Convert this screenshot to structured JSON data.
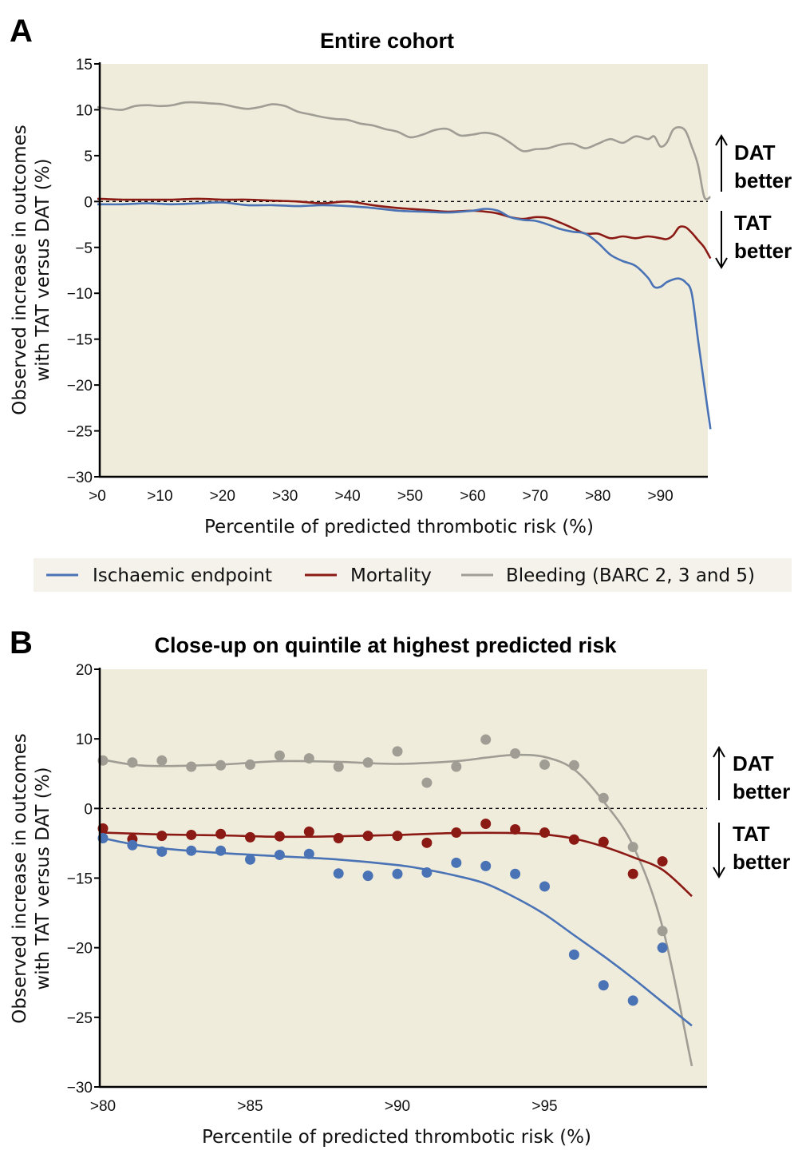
{
  "figure": {
    "legend": {
      "items": [
        {
          "label": "Ischaemic endpoint",
          "color": "#4a73b5"
        },
        {
          "label": "Mortality",
          "color": "#8b1a14"
        },
        {
          "label": "Bleeding (BARC 2, 3 and 5)",
          "color": "#a09d95"
        }
      ]
    },
    "plot_background": "#efecdc",
    "annotations": {
      "up": {
        "line1": "DAT",
        "line2": "better"
      },
      "down": {
        "line1": "TAT",
        "line2": "better"
      }
    }
  },
  "chart_data": [
    {
      "panel": "A",
      "type": "line",
      "title": "Entire cohort",
      "xlabel": "Percentile of predicted thrombotic risk (%)",
      "ylabel_line1": "Observed increase in outcomes",
      "ylabel_line2": "with TAT versus DAT (%)",
      "xlim": [
        0,
        98
      ],
      "ylim": [
        -30,
        15
      ],
      "x_ticks": [
        0,
        10,
        20,
        30,
        40,
        50,
        60,
        70,
        80,
        90
      ],
      "x_tick_labels": [
        ">0",
        ">10",
        ">20",
        ">30",
        ">40",
        ">50",
        ">60",
        ">70",
        ">80",
        ">90"
      ],
      "y_ticks": [
        15,
        10,
        5,
        0,
        -5,
        -10,
        -15,
        -20,
        -25,
        -30
      ],
      "y_tick_labels": [
        "15",
        "10",
        "5",
        "0",
        "−5",
        "−10",
        "−15",
        "−20",
        "−25",
        "−30"
      ],
      "reference_line": 0,
      "series": [
        {
          "name": "Bleeding (BARC 2, 3 and 5)",
          "color": "#a09d95",
          "x": [
            0,
            2,
            4,
            6,
            8,
            10,
            12,
            14,
            16,
            18,
            20,
            22,
            24,
            26,
            28,
            30,
            32,
            34,
            36,
            38,
            40,
            42,
            44,
            46,
            48,
            50,
            52,
            54,
            56,
            58,
            60,
            62,
            64,
            66,
            68,
            70,
            72,
            74,
            76,
            78,
            80,
            82,
            84,
            86,
            88,
            89,
            90,
            91,
            92,
            93,
            94,
            95,
            96,
            97,
            98
          ],
          "y": [
            10.3,
            10.1,
            10.0,
            10.4,
            10.5,
            10.4,
            10.5,
            10.8,
            10.8,
            10.7,
            10.6,
            10.3,
            10.1,
            10.3,
            10.6,
            10.4,
            9.8,
            9.5,
            9.2,
            9.0,
            8.9,
            8.5,
            8.3,
            7.9,
            7.6,
            7.0,
            7.3,
            7.8,
            7.9,
            7.2,
            7.3,
            7.5,
            7.2,
            6.4,
            5.5,
            5.7,
            5.8,
            6.2,
            6.3,
            5.8,
            6.3,
            6.8,
            6.4,
            7.1,
            6.8,
            7.1,
            6.0,
            6.4,
            7.8,
            8.1,
            7.7,
            6.0,
            4.0,
            0.5,
            0.5
          ]
        },
        {
          "name": "Mortality",
          "color": "#8b1a14",
          "x": [
            0,
            4,
            8,
            12,
            16,
            20,
            24,
            28,
            32,
            36,
            40,
            44,
            48,
            52,
            56,
            60,
            62,
            64,
            66,
            68,
            70,
            72,
            74,
            76,
            78,
            80,
            82,
            84,
            86,
            88,
            90,
            91,
            92,
            93,
            94,
            95,
            96,
            97,
            98
          ],
          "y": [
            0.3,
            0.2,
            0.2,
            0.2,
            0.3,
            0.2,
            0.2,
            0.1,
            0.0,
            -0.2,
            0.0,
            -0.4,
            -0.7,
            -0.9,
            -1.1,
            -1.0,
            -1.1,
            -1.3,
            -1.7,
            -1.9,
            -1.7,
            -1.8,
            -2.3,
            -2.9,
            -3.5,
            -3.5,
            -4.0,
            -3.8,
            -4.0,
            -3.8,
            -4.0,
            -4.1,
            -3.7,
            -2.8,
            -2.8,
            -3.4,
            -4.2,
            -5.0,
            -6.2
          ]
        },
        {
          "name": "Ischaemic endpoint",
          "color": "#4a73b5",
          "x": [
            0,
            4,
            8,
            12,
            16,
            20,
            24,
            28,
            32,
            36,
            40,
            44,
            48,
            52,
            56,
            60,
            62,
            64,
            66,
            68,
            70,
            72,
            74,
            76,
            78,
            80,
            82,
            84,
            86,
            88,
            89,
            90,
            91,
            92,
            93,
            94,
            95,
            96,
            97,
            98
          ],
          "y": [
            -0.3,
            -0.3,
            -0.2,
            -0.3,
            -0.2,
            -0.1,
            -0.4,
            -0.4,
            -0.5,
            -0.4,
            -0.5,
            -0.7,
            -1.0,
            -1.1,
            -1.2,
            -1.0,
            -0.8,
            -1.0,
            -1.7,
            -2.0,
            -2.1,
            -2.5,
            -3.0,
            -3.3,
            -3.5,
            -4.5,
            -5.8,
            -6.5,
            -7.0,
            -8.3,
            -9.3,
            -9.3,
            -8.8,
            -8.5,
            -8.4,
            -8.8,
            -10.0,
            -15.0,
            -20.0,
            -24.8
          ]
        }
      ]
    },
    {
      "panel": "B",
      "type": "scatter",
      "title": "Close-up on quintile at highest predicted risk",
      "xlabel": "Percentile of predicted thrombotic risk (%)",
      "ylabel_line1": "Observed increase in outcomes",
      "ylabel_line2": "with TAT versus DAT (%)",
      "xlim": [
        80,
        100
      ],
      "x_ticks": [
        80,
        85,
        90,
        95
      ],
      "x_tick_labels": [
        ">80",
        ">85",
        ">90",
        ">95"
      ],
      "y_ticks": [
        20,
        10,
        0,
        -15,
        -20,
        -25,
        -30
      ],
      "y_tick_labels": [
        "20",
        "10",
        "0",
        "−15",
        "−20",
        "−25",
        "−30"
      ],
      "reference_line": 0,
      "series": [
        {
          "name": "Bleeding (BARC 2, 3 and 5)",
          "color": "#a09d95",
          "points_x": [
            80,
            81,
            82,
            83,
            84,
            85,
            86,
            87,
            88,
            89,
            90,
            91,
            92,
            93,
            94,
            95,
            96,
            97,
            98,
            99
          ],
          "points_y": [
            6.9,
            6.6,
            6.9,
            6.0,
            6.2,
            6.3,
            7.6,
            7.2,
            6.0,
            6.6,
            8.2,
            3.7,
            6.0,
            9.9,
            7.9,
            6.3,
            6.2,
            1.5,
            -8.3,
            -18.8
          ],
          "fit_x": [
            80,
            81,
            82,
            84,
            86,
            88,
            90,
            92,
            93,
            94,
            95,
            96,
            97,
            98,
            99,
            100
          ],
          "fit_y": [
            7.0,
            6.3,
            6.1,
            6.3,
            6.8,
            6.7,
            6.4,
            6.8,
            7.3,
            7.7,
            7.4,
            5.6,
            1.0,
            -8.0,
            -18.5,
            -28.5
          ]
        },
        {
          "name": "Mortality",
          "color": "#8b1a14",
          "points_x": [
            80,
            81,
            82,
            83,
            84,
            85,
            86,
            87,
            88,
            89,
            90,
            91,
            92,
            93,
            94,
            95,
            96,
            97,
            98,
            99
          ],
          "points_y": [
            -4.3,
            -6.6,
            -5.9,
            -5.7,
            -5.5,
            -6.2,
            -6.0,
            -5.0,
            -6.4,
            -5.9,
            -5.9,
            -7.4,
            -5.2,
            -3.3,
            -4.5,
            -5.2,
            -6.7,
            -7.2,
            -14.1,
            -11.4
          ],
          "fit_x": [
            80,
            82,
            84,
            86,
            88,
            90,
            92,
            94,
            95,
            96,
            97,
            98,
            99,
            100
          ],
          "fit_y": [
            -5.2,
            -5.6,
            -5.8,
            -6.1,
            -6.0,
            -5.7,
            -5.3,
            -5.3,
            -5.6,
            -6.5,
            -8.2,
            -10.5,
            -13.2,
            -16.3
          ]
        },
        {
          "name": "Ischaemic endpoint",
          "color": "#4a73b5",
          "points_x": [
            80,
            81,
            82,
            83,
            84,
            85,
            86,
            87,
            88,
            89,
            90,
            91,
            92,
            93,
            94,
            95,
            96,
            97,
            98,
            99
          ],
          "points_y": [
            -6.4,
            -7.9,
            -9.3,
            -9.1,
            -9.1,
            -11.0,
            -10.0,
            -9.8,
            -14.0,
            -14.5,
            -14.1,
            -13.8,
            -11.7,
            -12.4,
            -14.1,
            -15.6,
            -20.5,
            -22.7,
            -23.8,
            -20.0
          ],
          "fit_x": [
            80,
            81,
            82,
            84,
            86,
            88,
            90,
            91,
            92,
            93,
            94,
            95,
            96,
            97,
            98,
            99,
            100
          ],
          "fit_y": [
            -6.4,
            -7.7,
            -8.6,
            -9.6,
            -10.3,
            -11.0,
            -12.2,
            -13.2,
            -14.5,
            -15.4,
            -16.4,
            -17.6,
            -19.1,
            -20.6,
            -22.2,
            -23.9,
            -25.6
          ]
        }
      ]
    }
  ]
}
